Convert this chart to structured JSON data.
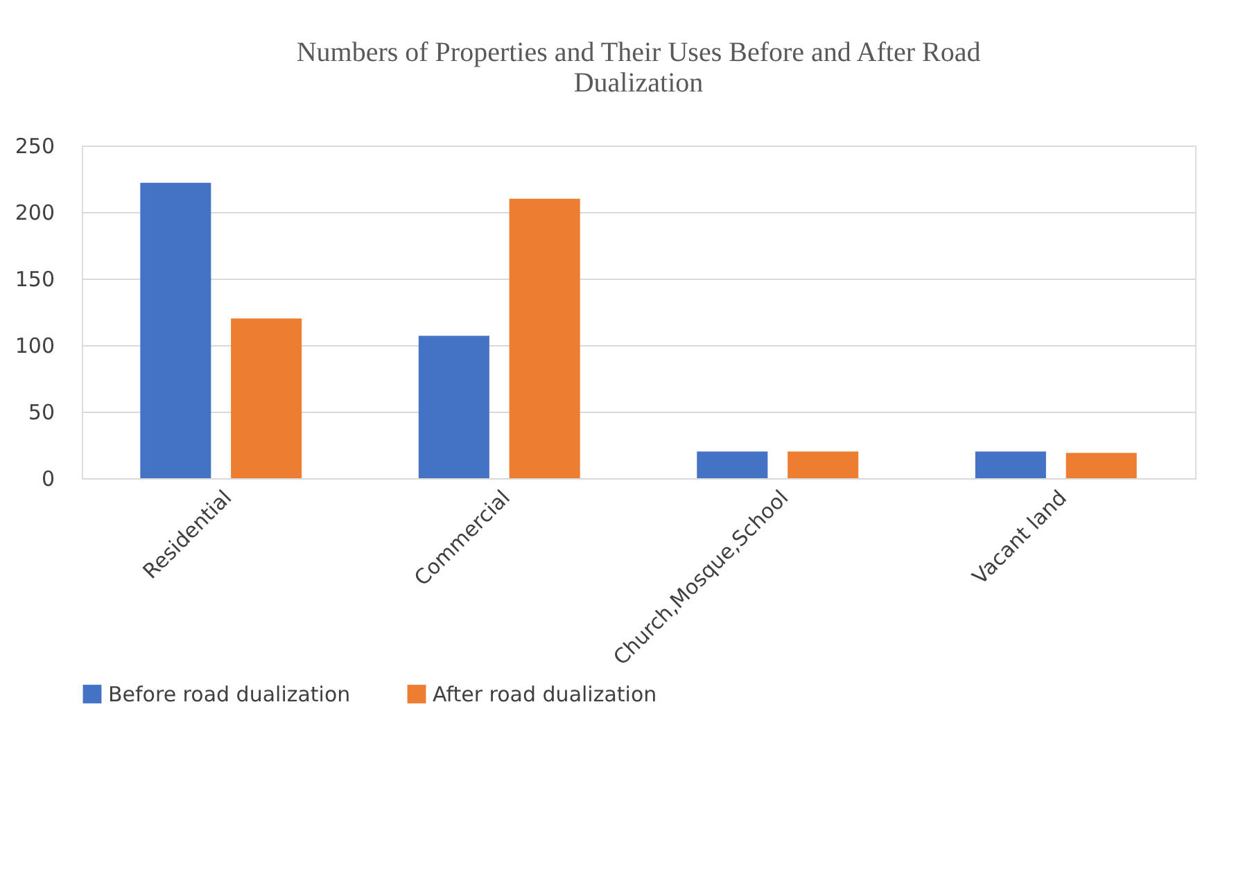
{
  "chart_data": {
    "type": "bar",
    "title": "Numbers of Properties and Their Uses Before and After Road Dualization",
    "categories": [
      "Residential",
      "Commercial",
      "Church,Mosque,School",
      "Vacant land"
    ],
    "series": [
      {
        "name": "Before road dualization",
        "color": "#4472c4",
        "values": [
          222,
          107,
          20,
          20
        ]
      },
      {
        "name": "After road dualization",
        "color": "#ed7d31",
        "values": [
          120,
          210,
          20,
          19
        ]
      }
    ],
    "ylim": [
      0,
      250
    ],
    "yticks": [
      0,
      50,
      100,
      150,
      200,
      250
    ],
    "grid": "y",
    "legend": "bottom"
  }
}
